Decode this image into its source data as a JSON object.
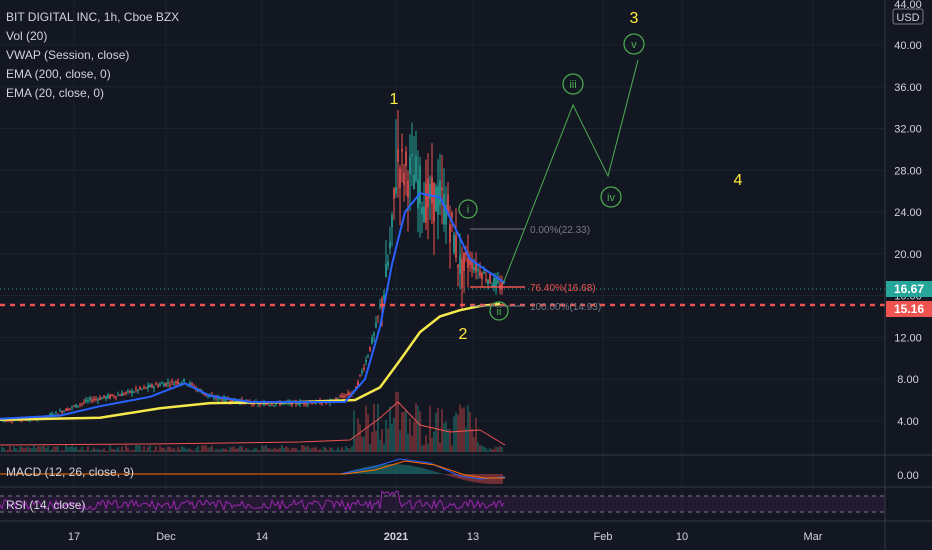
{
  "colors": {
    "background": "#131722",
    "grid": "#1e222d",
    "text": "#d1d4dc",
    "up": "#26a69a",
    "down": "#ef5350",
    "ema200": "#f5e84b",
    "ema20": "#2962ff",
    "wave": "#4caf50",
    "wave_label": "#ffeb3b",
    "fib": "#ef5350",
    "macd": "#2962ff",
    "signal": "#ff6d00",
    "rsi": "#9c27b0"
  },
  "legend": {
    "symbol": "BIT DIGITAL INC, 1h, Cboe BZX",
    "vol": "Vol (20)",
    "vwap": "VWAP (Session, close)",
    "ema200": "EMA (200, close, 0)",
    "ema20": "EMA (20, close, 0)"
  },
  "price_axis": {
    "top_label": "44.00",
    "currency": "USD",
    "ticks": [
      "40.00",
      "36.00",
      "32.00",
      "28.00",
      "24.00",
      "20.00",
      "16.00",
      "12.00",
      "8.00",
      "4.00"
    ],
    "current_price": "16.67",
    "red_level": "15.16"
  },
  "time_axis": {
    "ticks": [
      "17",
      "Dec",
      "14",
      "2021",
      "13",
      "Feb",
      "10",
      "Mar"
    ]
  },
  "waves": {
    "major": [
      "1",
      "2",
      "3",
      "4"
    ],
    "minor": [
      "i",
      "ii",
      "iii",
      "iv",
      "v"
    ]
  },
  "fib": {
    "level_0": "0.00%(22.33)",
    "level_76": "76.40%(16.68)",
    "level_100": "100.00%(14.93)"
  },
  "macd": {
    "label": "MACD (12, 26, close, 9)",
    "ticks": [
      "0.00"
    ]
  },
  "rsi": {
    "label": "RSI (14, close)"
  }
}
